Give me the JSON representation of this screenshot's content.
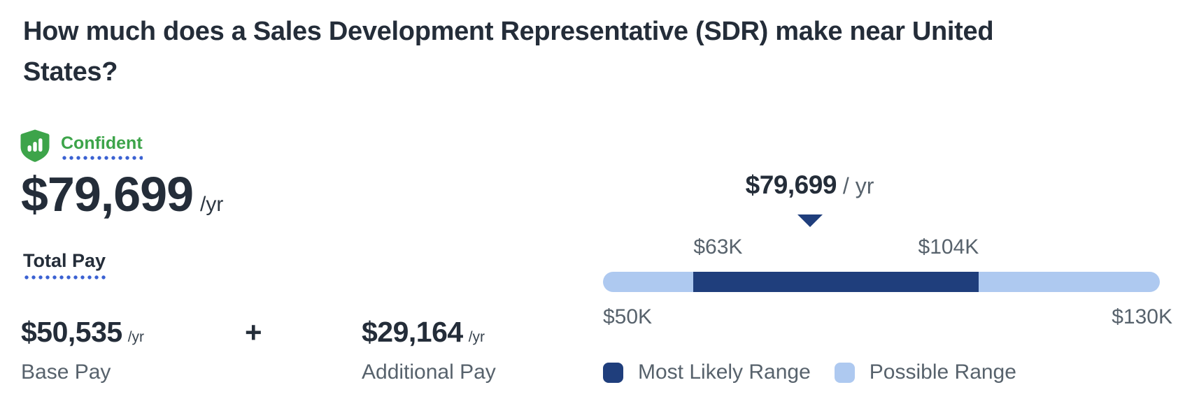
{
  "page": {
    "title": "How much does a Sales Development Representative (SDR) make near United States?"
  },
  "confidence": {
    "icon": "shield-bar-chart-icon",
    "label": "Confident",
    "icon_color": "#3da44a",
    "underline_color": "#3a61d2"
  },
  "total_pay": {
    "amount": "$79,699",
    "period": "/yr",
    "label": "Total Pay"
  },
  "breakdown": {
    "base": {
      "amount": "$50,535",
      "period": "/yr",
      "label": "Base Pay"
    },
    "operator": "+",
    "additional": {
      "amount": "$29,164",
      "period": "/yr",
      "label": "Additional Pay"
    }
  },
  "chart_data": {
    "type": "range-bar",
    "pointer": {
      "amount": "$79,699",
      "period": "/ yr",
      "value": 79699
    },
    "axis": {
      "min": 50000,
      "max": 130000,
      "min_label": "$50K",
      "max_label": "$130K"
    },
    "most_likely": {
      "low": 63000,
      "high": 104000,
      "low_label": "$63K",
      "high_label": "$104K"
    },
    "legend": [
      {
        "label": "Most Likely Range",
        "color": "#1f3e7c"
      },
      {
        "label": "Possible Range",
        "color": "#aec9f0"
      }
    ],
    "colors": {
      "most_likely": "#1f3e7c",
      "possible": "#aec9f0",
      "pointer_arrow": "#1f3e7c"
    }
  }
}
